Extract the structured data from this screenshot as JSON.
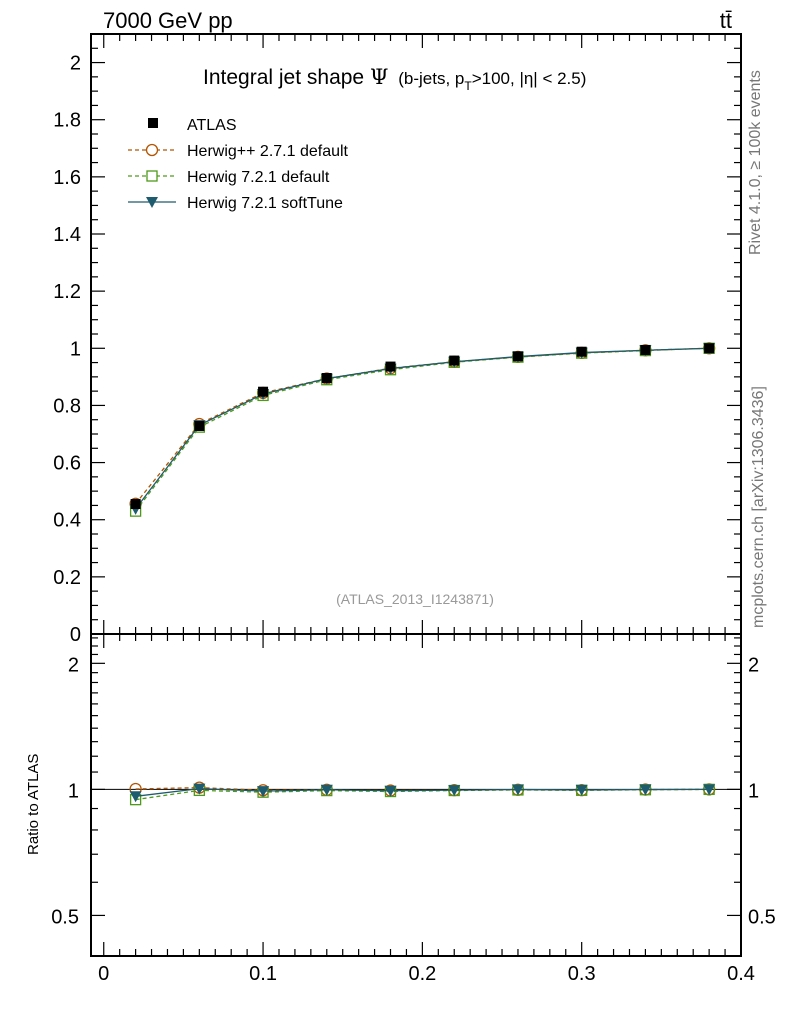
{
  "header": {
    "energy_label": "7000 GeV pp",
    "process_label": "tt̄"
  },
  "side": {
    "rivet_label": "Rivet 4.1.0, ≥ 100k events",
    "mcplots_label": "mcplots.cern.ch [arXiv:1306.3436]"
  },
  "chart_data": {
    "type": "line",
    "title": "Integral jet shape",
    "title_symbol": "Ψ",
    "title_cuts": "(b-jets, p",
    "title_cuts_sub": "T",
    "title_cuts_rest": ">100, |η| < 2.5)",
    "analysis_id": "(ATLAS_2013_I1243871)",
    "xlabel": "",
    "ylabel_main": "",
    "ylabel_ratio": "Ratio to ATLAS",
    "xlim": [
      -0.008,
      0.4
    ],
    "ylim_main": [
      0,
      2.1
    ],
    "ylim_ratio": [
      0.4,
      2.35
    ],
    "x_ticks": [
      0,
      0.1,
      0.2,
      0.3,
      0.4
    ],
    "x_tick_labels": [
      "0",
      "0.1",
      "0.2",
      "0.3",
      "0.4"
    ],
    "y_ticks_main": [
      0,
      0.2,
      0.4,
      0.6,
      0.8,
      1,
      1.2,
      1.4,
      1.6,
      1.8,
      2
    ],
    "y_tick_labels_main": [
      "0",
      "0.2",
      "0.4",
      "0.6",
      "0.8",
      "1",
      "1.2",
      "1.4",
      "1.6",
      "1.8",
      "2"
    ],
    "y_ticks_ratio": [
      0.5,
      1,
      2
    ],
    "y_tick_labels_ratio": [
      "0.5",
      "1",
      "2"
    ],
    "x": [
      0.02,
      0.06,
      0.1,
      0.14,
      0.18,
      0.22,
      0.26,
      0.3,
      0.34,
      0.38
    ],
    "series": [
      {
        "name": "ATLAS",
        "style": "data",
        "color": "#000000",
        "values": [
          0.455,
          0.728,
          0.848,
          0.896,
          0.936,
          0.957,
          0.972,
          0.988,
          0.994,
          1.0
        ]
      },
      {
        "name": "Herwig++ 2.7.1 default",
        "style": "open-circle-dashed",
        "color": "#b35400",
        "values": [
          0.456,
          0.735,
          0.844,
          0.894,
          0.93,
          0.953,
          0.97,
          0.984,
          0.993,
          1.0
        ]
      },
      {
        "name": "Herwig 7.2.1 default",
        "style": "open-square-dashed",
        "color": "#4d9a1a",
        "values": [
          0.43,
          0.724,
          0.835,
          0.89,
          0.925,
          0.951,
          0.969,
          0.983,
          0.992,
          1.0
        ]
      },
      {
        "name": "Herwig 7.2.1 softTune",
        "style": "filled-triangle-solid",
        "color": "#1e5b6e",
        "values": [
          0.438,
          0.731,
          0.84,
          0.894,
          0.929,
          0.953,
          0.971,
          0.985,
          0.993,
          1.0
        ]
      }
    ],
    "legend_position": "top-left"
  }
}
